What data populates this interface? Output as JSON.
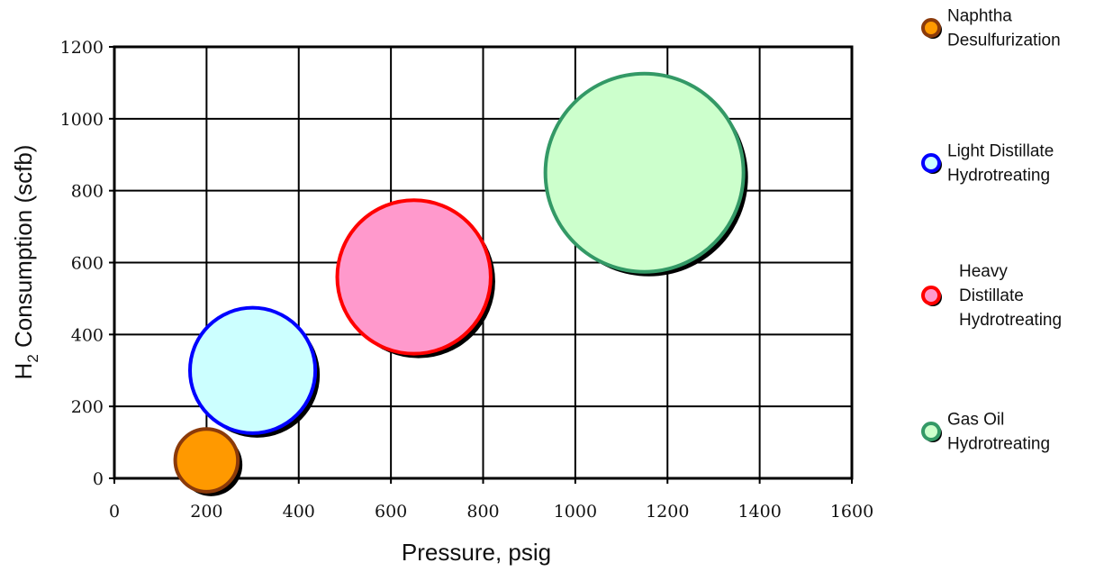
{
  "chart_data": {
    "type": "scatter",
    "subtype": "bubble",
    "xlabel": "Pressure, psig",
    "ylabel_main": "H",
    "ylabel_sub": "2",
    "ylabel_rest": " Consumption (scfb)",
    "xlim": [
      0,
      1600
    ],
    "ylim": [
      0,
      1200
    ],
    "xticks": [
      "0",
      "200",
      "400",
      "600",
      "800",
      "1000",
      "1200",
      "1400",
      "1600"
    ],
    "yticks": [
      "0",
      "200",
      "400",
      "600",
      "800",
      "1000",
      "1200"
    ],
    "grid": true,
    "legend_position": "right",
    "series": [
      {
        "name": "Naphtha Desulfurization",
        "legend_lines": [
          "Naphtha",
          "Desulfurization"
        ],
        "x": 200,
        "y": 50,
        "size_rel": 1,
        "fill": "#ff9900",
        "stroke": "#8b3a0a"
      },
      {
        "name": "Light Distillate Hydrotreating",
        "legend_lines": [
          "Light Distillate",
          "Hydrotreating"
        ],
        "x": 300,
        "y": 300,
        "size_rel": 4,
        "fill": "#ccffff",
        "stroke": "#0000ff"
      },
      {
        "name": "Heavy Distillate Hydrotreating",
        "legend_lines": [
          "Heavy",
          "Distillate",
          "Hydrotreating"
        ],
        "x": 650,
        "y": 560,
        "size_rel": 6,
        "fill": "#ff99cc",
        "stroke": "#ff0000"
      },
      {
        "name": "Gas Oil Hydrotreating",
        "legend_lines": [
          "Gas Oil",
          "Hydrotreating"
        ],
        "x": 1150,
        "y": 850,
        "size_rel": 10,
        "fill": "#ccffcc",
        "stroke": "#339966"
      }
    ]
  }
}
